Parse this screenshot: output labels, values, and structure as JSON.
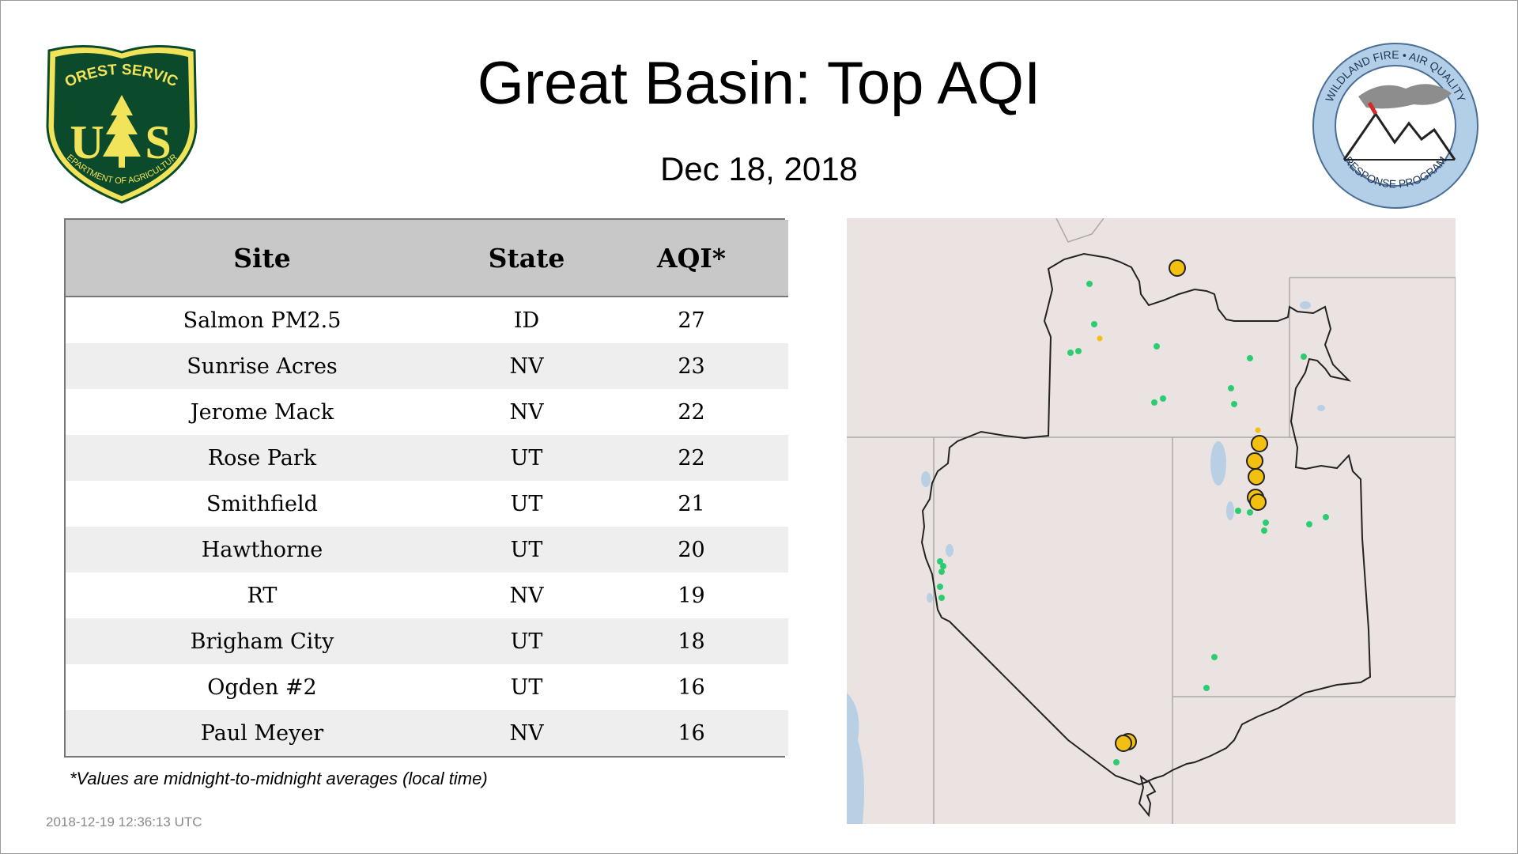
{
  "header": {
    "title": "Great Basin: Top AQI",
    "date": "Dec 18, 2018"
  },
  "logos": {
    "left": {
      "name": "usfs-shield",
      "line1": "FOREST SERVICE",
      "letters": "U S",
      "line2": "DEPARTMENT OF AGRICULTURE",
      "green": "#0c4a2c",
      "gold": "#f2e45a"
    },
    "right": {
      "name": "wildland-fire-air-quality-seal",
      "line1": "WILDLAND FIRE • AIR QUALITY",
      "line2": "RESPONSE PROGRAM",
      "blue": "#b3cfe8"
    }
  },
  "table": {
    "headers": [
      "Site",
      "State",
      "AQI*"
    ],
    "rows": [
      [
        "Salmon PM2.5",
        "ID",
        "27"
      ],
      [
        "Sunrise Acres",
        "NV",
        "23"
      ],
      [
        "Jerome Mack",
        "NV",
        "22"
      ],
      [
        "Rose Park",
        "UT",
        "22"
      ],
      [
        "Smithfield",
        "UT",
        "21"
      ],
      [
        "Hawthorne",
        "UT",
        "20"
      ],
      [
        "RT",
        "NV",
        "19"
      ],
      [
        "Brigham City",
        "UT",
        "18"
      ],
      [
        "Ogden #2",
        "UT",
        "16"
      ],
      [
        "Paul Meyer",
        "NV",
        "16"
      ]
    ]
  },
  "footnote": "*Values are midnight-to-midnight averages (local time)",
  "timestamp": "2018-12-19 12:36:13 UTC",
  "map": {
    "colors": {
      "background": "#ebe3e1",
      "good": "#2ecc71",
      "moderate": "#f2c010",
      "boundary": "#222222",
      "state_lines": "#a9a9a9",
      "water": "#b9cfe3"
    },
    "legend_levels": [
      "good",
      "moderate"
    ]
  }
}
